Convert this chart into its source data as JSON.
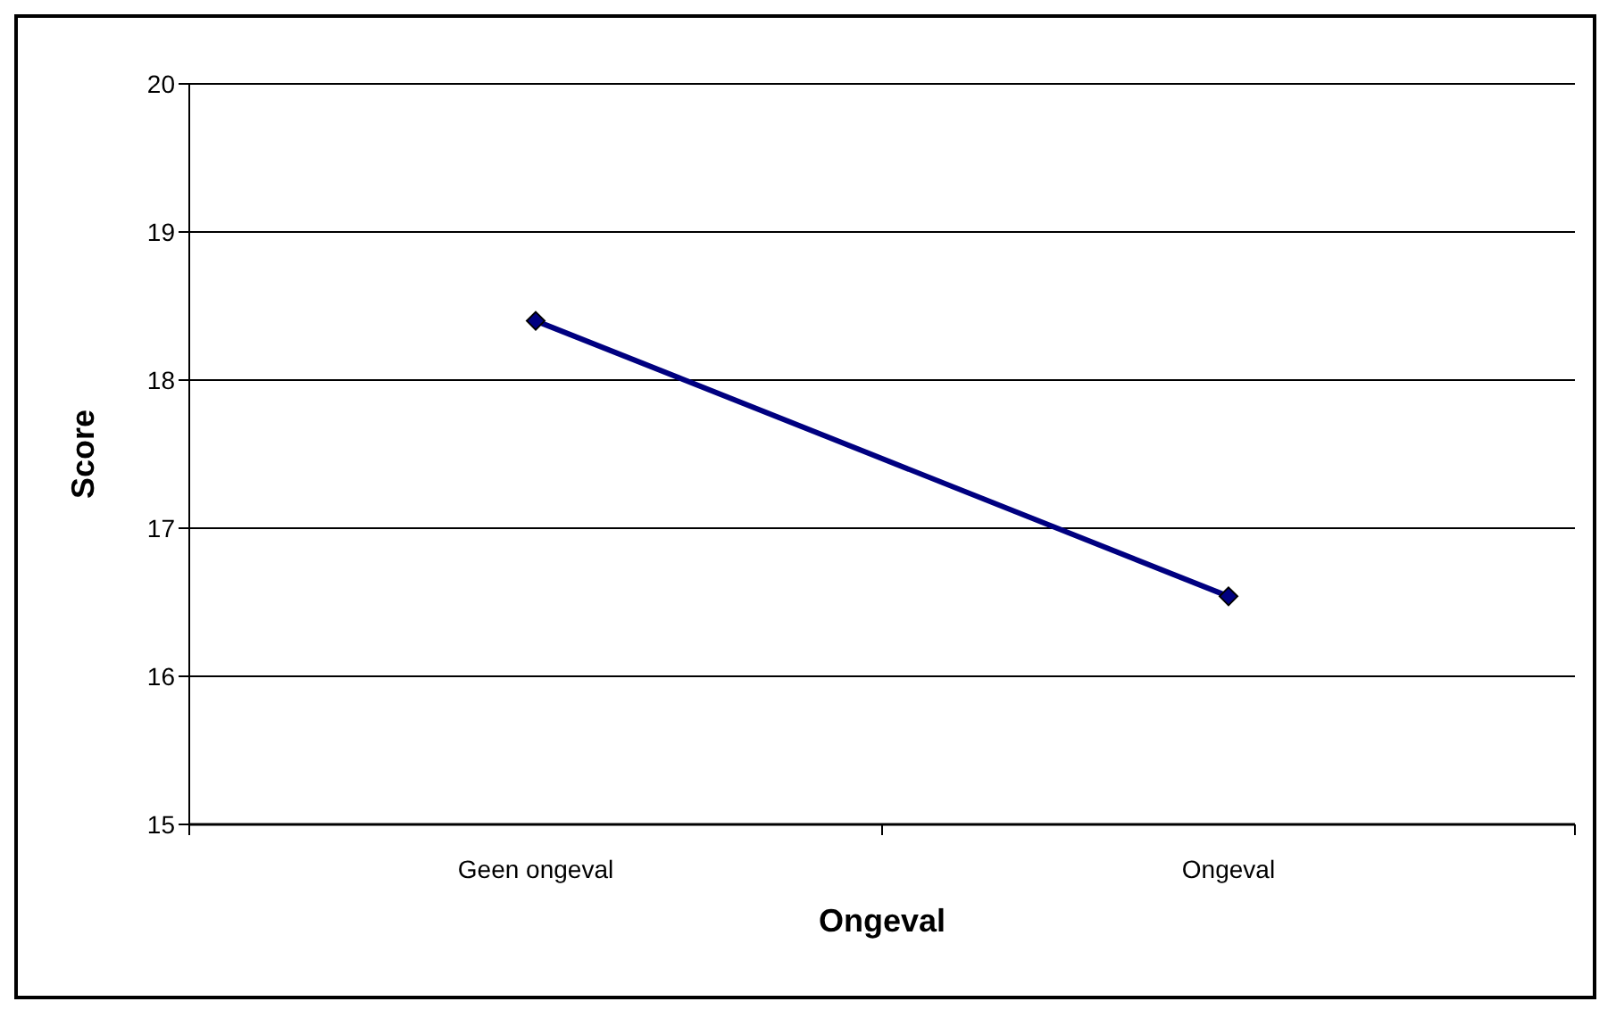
{
  "chart_data": {
    "type": "line",
    "xlabel": "Ongeval",
    "ylabel": "Score",
    "categories": [
      "Geen ongeval",
      "Ongeval"
    ],
    "series": [
      {
        "color": "#000080",
        "values": [
          18.4,
          16.54
        ]
      }
    ],
    "ylim": [
      15,
      20
    ],
    "yticks": [
      15,
      16,
      17,
      18,
      19,
      20
    ],
    "grid": "y",
    "marker": "diamond",
    "line_style": "solid",
    "legend": false
  }
}
